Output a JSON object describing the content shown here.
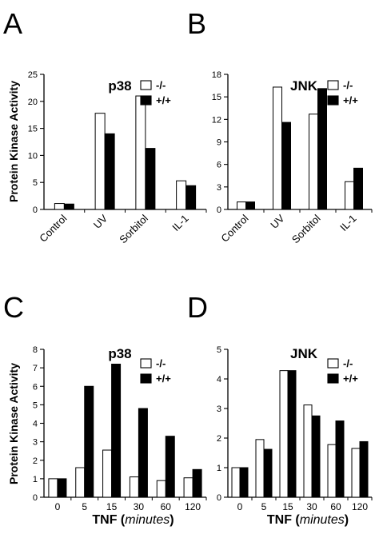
{
  "panels": [
    {
      "letter": "A"
    },
    {
      "letter": "B"
    },
    {
      "letter": "C"
    },
    {
      "letter": "D"
    }
  ],
  "shared": {
    "ylabel": "Protein Kinase Activity",
    "legend": [
      "-/-",
      "+/+"
    ],
    "xlabel_main": "TNF (",
    "xlabel_unit": "minutes",
    "xlabel_close": ")"
  },
  "colors": {
    "knockout": "#ffffff",
    "wildtype": "#000000",
    "axis": "#000000"
  },
  "chart_data": [
    {
      "type": "bar",
      "title": "p38",
      "ylabel": "Protein Kinase Activity",
      "xlabel": "",
      "categories": [
        "Control",
        "UV",
        "Sorbitol",
        "IL-1"
      ],
      "yticks": [
        0,
        5,
        10,
        15,
        20,
        25
      ],
      "ylim": [
        0,
        25
      ],
      "series": [
        {
          "name": "-/-",
          "values": [
            1.1,
            17.8,
            21.0,
            5.3
          ]
        },
        {
          "name": "+/+",
          "values": [
            1.0,
            14.0,
            11.3,
            4.4
          ]
        }
      ],
      "legend_position": "top-right",
      "rotated_ticks": true
    },
    {
      "type": "bar",
      "title": "JNK",
      "ylabel": "",
      "xlabel": "",
      "categories": [
        "Control",
        "UV",
        "Sorbitol",
        "IL-1"
      ],
      "yticks": [
        0,
        3,
        6,
        9,
        12,
        15,
        18
      ],
      "ylim": [
        0,
        18
      ],
      "series": [
        {
          "name": "-/-",
          "values": [
            1.0,
            16.3,
            12.7,
            3.7
          ]
        },
        {
          "name": "+/+",
          "values": [
            1.0,
            11.6,
            16.1,
            5.5
          ]
        }
      ],
      "legend_position": "top-right",
      "rotated_ticks": true
    },
    {
      "type": "bar",
      "title": "p38",
      "ylabel": "Protein Kinase Activity",
      "xlabel": "TNF (minutes)",
      "categories": [
        "0",
        "5",
        "15",
        "30",
        "60",
        "120"
      ],
      "yticks": [
        0,
        1,
        2,
        3,
        4,
        5,
        6,
        7,
        8
      ],
      "ylim": [
        0,
        8
      ],
      "series": [
        {
          "name": "-/-",
          "values": [
            1.0,
            1.6,
            2.55,
            1.1,
            0.9,
            1.05
          ]
        },
        {
          "name": "+/+",
          "values": [
            1.0,
            6.0,
            7.2,
            4.8,
            3.3,
            1.5
          ]
        }
      ],
      "legend_position": "top-right",
      "rotated_ticks": false
    },
    {
      "type": "bar",
      "title": "JNK",
      "ylabel": "",
      "xlabel": "TNF (minutes)",
      "categories": [
        "0",
        "5",
        "15",
        "30",
        "60",
        "120"
      ],
      "yticks": [
        0,
        1,
        2,
        3,
        4,
        5
      ],
      "ylim": [
        0,
        5
      ],
      "series": [
        {
          "name": "-/-",
          "values": [
            1.0,
            1.95,
            4.28,
            3.12,
            1.78,
            1.65
          ]
        },
        {
          "name": "+/+",
          "values": [
            1.0,
            1.62,
            4.28,
            2.75,
            2.58,
            1.88
          ]
        }
      ],
      "legend_position": "top-right",
      "rotated_ticks": false
    }
  ]
}
